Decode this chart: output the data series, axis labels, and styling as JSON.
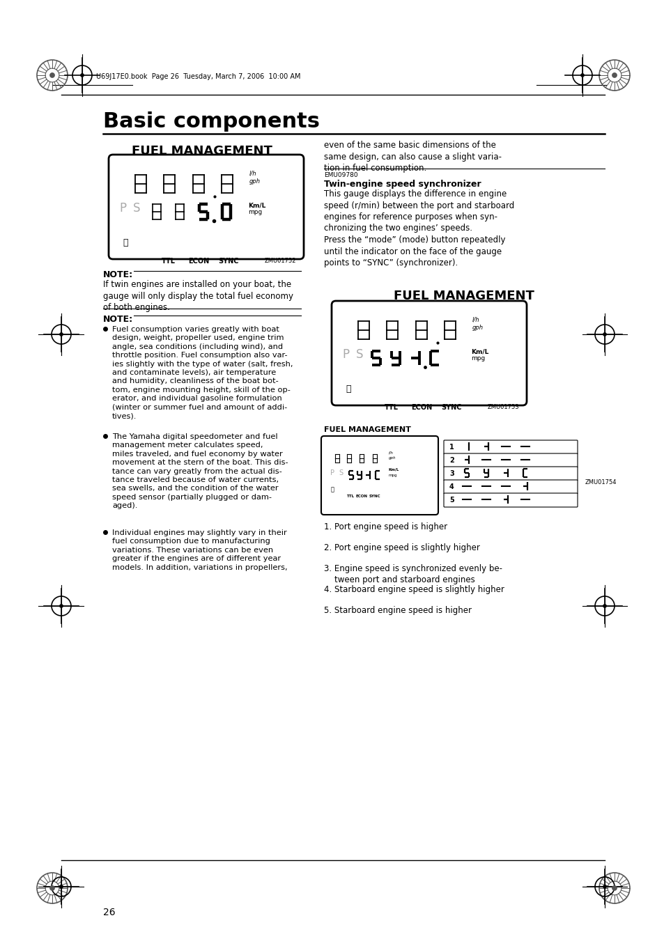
{
  "page_title": "Basic components",
  "header_text": "U69J17E0.book  Page 26  Tuesday, March 7, 2006  10:00 AM",
  "page_number": "26",
  "fuel_mgmt_title": "FUEL MANAGEMENT",
  "note1_label": "NOTE:",
  "note1_text": "If twin engines are installed on your boat, the\ngauge will only display the total fuel economy\nof both engines.",
  "note2_label": "NOTE:",
  "note2_bullets": [
    "Fuel consumption varies greatly with boat\ndesign, weight, propeller used, engine trim\nangle, sea conditions (including wind), and\nthrottle position. Fuel consumption also var-\nies slightly with the type of water (salt, fresh,\nand contaminate levels), air temperature\nand humidity, cleanliness of the boat bot-\ntom, engine mounting height, skill of the op-\nerator, and individual gasoline formulation\n(winter or summer fuel and amount of addi-\ntives).",
    "The Yamaha digital speedometer and fuel\nmanagement meter calculates speed,\nmiles traveled, and fuel economy by water\nmovement at the stern of the boat. This dis-\ntance can vary greatly from the actual dis-\ntance traveled because of water currents,\nsea swells, and the condition of the water\nspeed sensor (partially plugged or dam-\naged).",
    "Individual engines may slightly vary in their\nfuel consumption due to manufacturing\nvariations. These variations can be even\ngreater if the engines are of different year\nmodels. In addition, variations in propellers,"
  ],
  "right_col_text": "even of the same basic dimensions of the\nsame design, can also cause a slight varia-\ntion in fuel consumption.",
  "emu_label": "EMU09780",
  "synchro_title": "Twin-engine speed synchronizer",
  "synchro_body": "This gauge displays the difference in engine\nspeed (r/min) between the port and starboard\nengines for reference purposes when syn-\nchronizing the two engines’ speeds.\nPress the “mode” (mode) button repeatedly\nuntil the indicator on the face of the gauge\npoints to “SYNC” (synchronizer).",
  "fuel_mgmt_title2": "FUEL MANAGEMENT",
  "zmu01752": "ZMU01752",
  "zmu01753": "ZMU01753",
  "zmu01754": "ZMU01754",
  "fuel_mgmt_label3": "FUEL MANAGEMENT",
  "numbered_items": [
    "1. Port engine speed is higher",
    "2. Port engine speed is slightly higher",
    "3. Engine speed is synchronized evenly be-\n    tween port and starboard engines",
    "4. Starboard engine speed is slightly higher",
    "5. Starboard engine speed is higher"
  ],
  "bg_color": "#ffffff",
  "text_color": "#000000"
}
